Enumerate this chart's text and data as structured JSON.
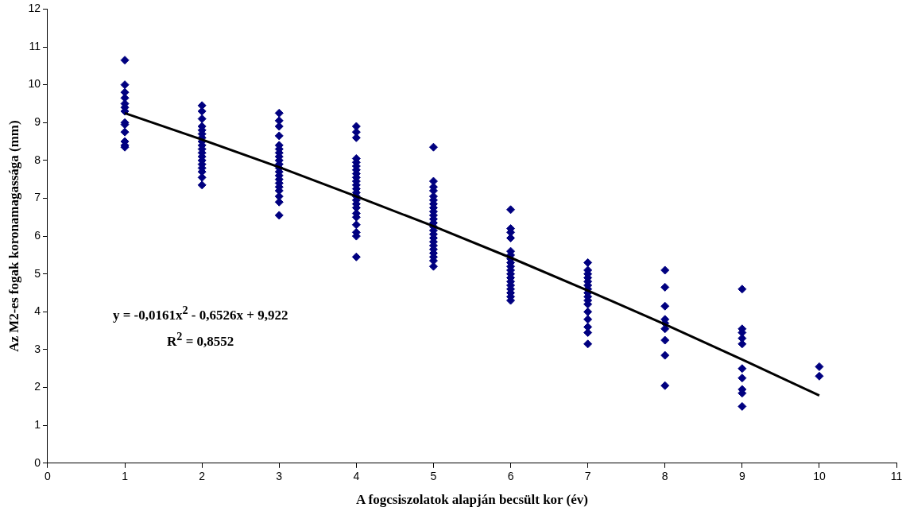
{
  "chart_data": {
    "type": "scatter",
    "xlabel": "A fogcsiszolatok alapján becsült kor (év)",
    "ylabel": "Az M2-es fogak koronamagassága (mm)",
    "xlim": [
      0,
      11
    ],
    "xticks": [
      0,
      1,
      2,
      3,
      4,
      5,
      6,
      7,
      8,
      9,
      10,
      11
    ],
    "ylim": [
      0,
      12
    ],
    "yticks": [
      0,
      1,
      2,
      3,
      4,
      5,
      6,
      7,
      8,
      9,
      10,
      11,
      12
    ],
    "grid": false,
    "legend": false,
    "marker": "diamond",
    "annotations": [
      "y = -0,0161x$^{2}$ - 0,6526x + 9,922",
      "R$^{2}$ = 0,8552"
    ],
    "series": [
      {
        "color": "#000080",
        "x": [
          1,
          1,
          1,
          1,
          1,
          1,
          1,
          1,
          1,
          1,
          1,
          1,
          1,
          2,
          2,
          2,
          2,
          2,
          2,
          2,
          2,
          2,
          2,
          2,
          2,
          2,
          2,
          2,
          2,
          2,
          2,
          3,
          3,
          3,
          3,
          3,
          3,
          3,
          3,
          3,
          3,
          3,
          3,
          3,
          3,
          3,
          3,
          3,
          3,
          3,
          3,
          4,
          4,
          4,
          4,
          4,
          4,
          4,
          4,
          4,
          4,
          4,
          4,
          4,
          4,
          4,
          4,
          4,
          4,
          4,
          4,
          4,
          4,
          4,
          5,
          5,
          5,
          5,
          5,
          5,
          5,
          5,
          5,
          5,
          5,
          5,
          5,
          5,
          5,
          5,
          5,
          5,
          5,
          5,
          5,
          5,
          5,
          6,
          6,
          6,
          6,
          6,
          6,
          6,
          6,
          6,
          6,
          6,
          6,
          6,
          6,
          6,
          6,
          6,
          6,
          7,
          7,
          7,
          7,
          7,
          7,
          7,
          7,
          7,
          7,
          7,
          7,
          7,
          7,
          7,
          7,
          8,
          8,
          8,
          8,
          8,
          8,
          8,
          8,
          8,
          9,
          9,
          9,
          9,
          9,
          9,
          9,
          9,
          9,
          9,
          10,
          10
        ],
        "values": [
          10.65,
          10.0,
          9.8,
          9.65,
          9.5,
          9.4,
          9.3,
          9.0,
          8.95,
          8.75,
          8.5,
          8.4,
          8.35,
          9.45,
          9.3,
          9.1,
          8.9,
          8.8,
          8.7,
          8.6,
          8.5,
          8.4,
          8.3,
          8.2,
          8.1,
          8.0,
          7.9,
          7.8,
          7.7,
          7.55,
          7.35,
          9.25,
          9.05,
          8.9,
          8.65,
          8.4,
          8.3,
          8.2,
          8.1,
          8.0,
          7.9,
          7.8,
          7.7,
          7.6,
          7.5,
          7.4,
          7.3,
          7.2,
          7.05,
          6.9,
          6.55,
          8.9,
          8.75,
          8.6,
          8.05,
          7.95,
          7.85,
          7.75,
          7.65,
          7.55,
          7.45,
          7.35,
          7.25,
          7.15,
          7.05,
          6.95,
          6.85,
          6.75,
          6.6,
          6.5,
          6.3,
          6.1,
          6.0,
          5.45,
          8.35,
          7.45,
          7.3,
          7.2,
          7.05,
          6.95,
          6.85,
          6.75,
          6.65,
          6.55,
          6.45,
          6.35,
          6.25,
          6.15,
          6.05,
          5.95,
          5.85,
          5.75,
          5.65,
          5.55,
          5.45,
          5.35,
          5.2,
          6.7,
          6.2,
          6.1,
          5.95,
          5.6,
          5.5,
          5.4,
          5.3,
          5.2,
          5.1,
          5.0,
          4.9,
          4.8,
          4.7,
          4.6,
          4.5,
          4.4,
          4.3,
          5.3,
          5.1,
          5.0,
          4.9,
          4.8,
          4.7,
          4.6,
          4.5,
          4.4,
          4.3,
          4.2,
          4.0,
          3.8,
          3.6,
          3.45,
          3.15,
          5.1,
          4.65,
          4.15,
          3.8,
          3.7,
          3.55,
          3.25,
          2.85,
          2.05,
          4.6,
          3.55,
          3.45,
          3.3,
          3.15,
          2.5,
          2.25,
          1.95,
          1.85,
          1.5,
          2.55,
          2.3
        ]
      },
      {
        "type": "line",
        "color": "#000000",
        "marker": "none",
        "line_style": "solid",
        "x": [
          1,
          2,
          3,
          4,
          5,
          6,
          7,
          8,
          9,
          10
        ],
        "values": [
          9.25,
          8.55,
          7.82,
          7.05,
          6.26,
          5.43,
          4.56,
          3.67,
          2.74,
          1.79
        ]
      }
    ]
  }
}
